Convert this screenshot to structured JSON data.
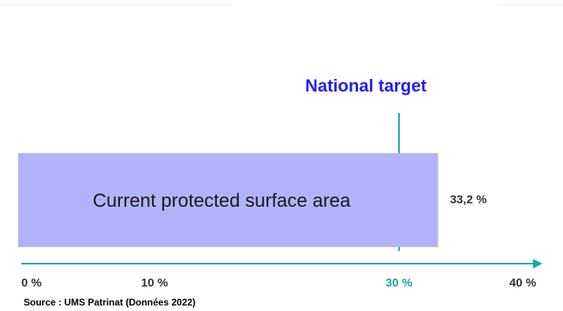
{
  "chart_data": {
    "type": "bar",
    "orientation": "horizontal",
    "categories": [
      "Current protected surface area"
    ],
    "values": [
      33.2
    ],
    "value_labels": [
      "33,2 %"
    ],
    "xlim": [
      0,
      40
    ],
    "x_ticks": [
      {
        "value": 0,
        "label": "0 %"
      },
      {
        "value": 10,
        "label": "10 %"
      },
      {
        "value": 20,
        "label": ""
      },
      {
        "value": 30,
        "label": "30 %",
        "highlight": true
      },
      {
        "value": 40,
        "label": "40 %"
      }
    ],
    "target": {
      "value": 30,
      "label": "National target"
    },
    "source": "Source : UMS Patrinat (Données 2022)",
    "grid": false,
    "colors": {
      "bar": "#b3b3fb",
      "axis": "#1aa6a6",
      "target_line": "#1aa6a6",
      "target_label": "#2222ee",
      "text": "#1a1a1a",
      "highlight_tick": "#1aa6a6"
    }
  }
}
